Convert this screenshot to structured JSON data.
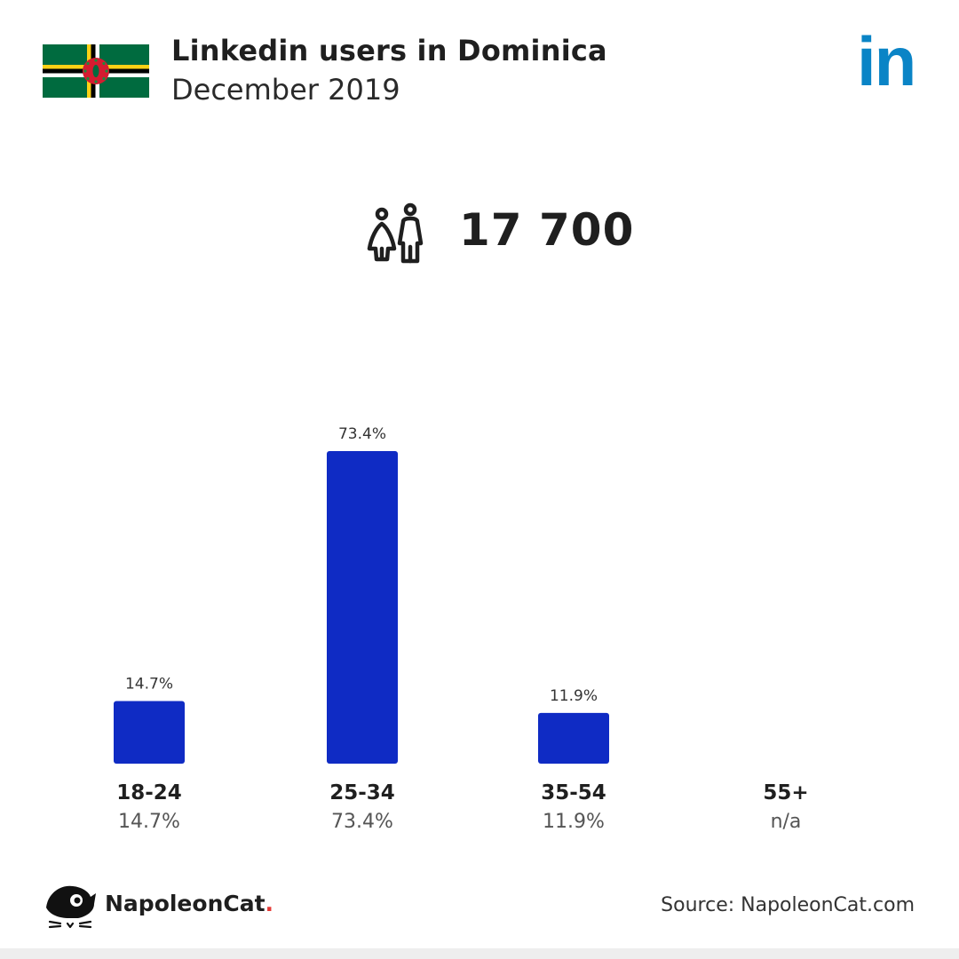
{
  "header": {
    "title": "Linkedin users in Dominica",
    "subtitle": "December 2019"
  },
  "logo": {
    "text": "in",
    "color": "#0a84c6"
  },
  "total": {
    "value": "17 700",
    "icon": "people-icon"
  },
  "chart_data": {
    "type": "bar",
    "categories": [
      "18-24",
      "25-34",
      "35-54",
      "55+"
    ],
    "values": [
      14.7,
      73.4,
      11.9,
      null
    ],
    "bar_labels": [
      "14.7%",
      "73.4%",
      "11.9%",
      ""
    ],
    "value_labels": [
      "14.7%",
      "73.4%",
      "11.9%",
      "n/a"
    ],
    "bar_color": "#0f2bc4",
    "ylim": [
      0,
      73.4
    ],
    "grid": false
  },
  "footer": {
    "brand": "NapoleonCat",
    "brand_dot": ".",
    "source": "Source: NapoleonCat.com"
  },
  "colors": {
    "brand_dot": "#e53935",
    "text": "#1f1f1f"
  }
}
